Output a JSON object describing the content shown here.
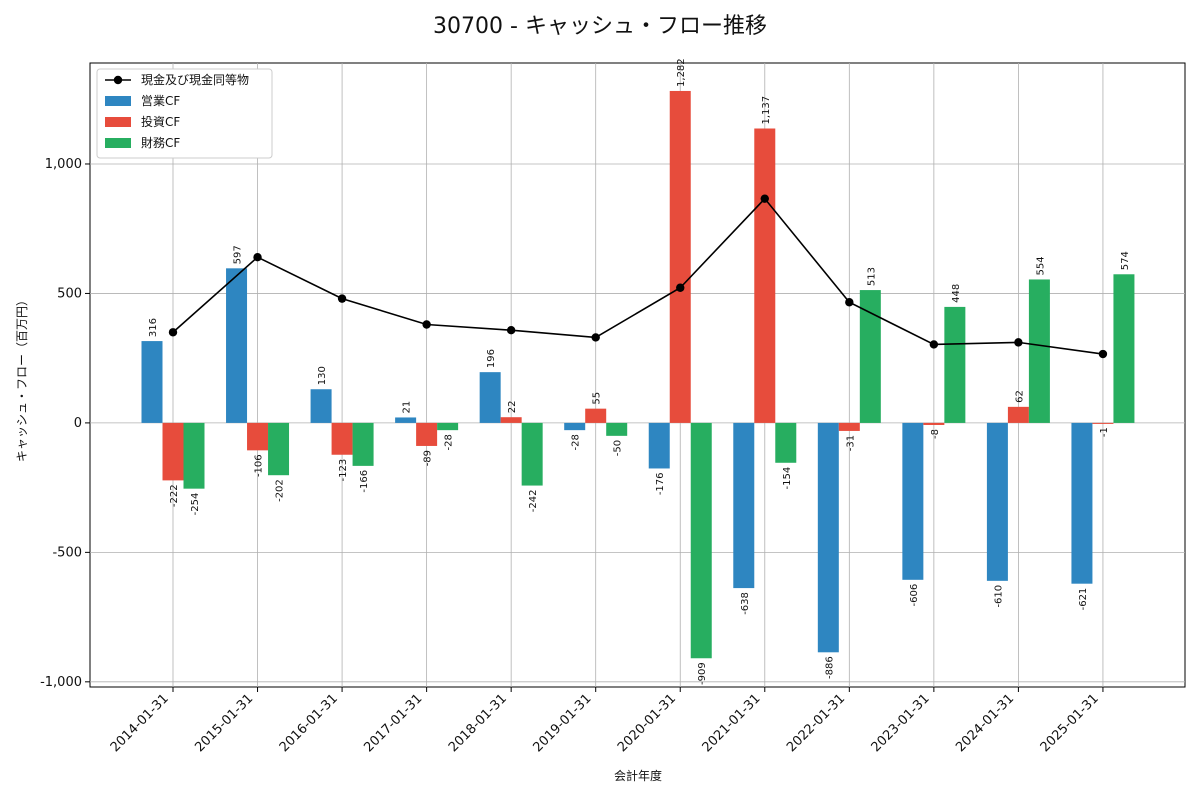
{
  "chart_data": {
    "type": "bar",
    "title": "30700 - キャッシュ・フロー推移",
    "xlabel": "会計年度",
    "ylabel": "キャッシュ・フロー（百万円）",
    "categories": [
      "2014-01-31",
      "2015-01-31",
      "2016-01-31",
      "2017-01-31",
      "2018-01-31",
      "2019-01-31",
      "2020-01-31",
      "2021-01-31",
      "2022-01-31",
      "2023-01-31",
      "2024-01-31",
      "2025-01-31"
    ],
    "ylim": [
      -1020,
      1390
    ],
    "yticks": [
      -1000,
      -500,
      0,
      500,
      1000
    ],
    "ytick_labels": [
      "-1,000",
      "-500",
      "0",
      "500",
      "1,000"
    ],
    "grid": true,
    "legend_position": "top-left",
    "series": [
      {
        "name": "営業CF",
        "type": "bar",
        "color": "#2e86c1",
        "values": [
          316,
          597,
          130,
          21,
          196,
          -28,
          -176,
          -638,
          -886,
          -606,
          -610,
          -621
        ],
        "labels": [
          "316",
          "597",
          "130",
          "21",
          "196",
          "-28",
          "-176",
          "-638",
          "-886",
          "-606",
          "-610",
          "-621"
        ]
      },
      {
        "name": "投資CF",
        "type": "bar",
        "color": "#e74c3c",
        "values": [
          -222,
          -106,
          -123,
          -89,
          22,
          55,
          1282,
          1137,
          -31,
          -8,
          62,
          -1
        ],
        "labels": [
          "-222",
          "-106",
          "-123",
          "-89",
          "22",
          "55",
          "1,282",
          "1,137",
          "-31",
          "-8",
          "62",
          "-1"
        ]
      },
      {
        "name": "財務CF",
        "type": "bar",
        "color": "#27ae60",
        "values": [
          -254,
          -202,
          -166,
          -28,
          -242,
          -50,
          -909,
          -154,
          513,
          448,
          554,
          574
        ],
        "labels": [
          "-254",
          "-202",
          "-166",
          "-28",
          "-242",
          "-50",
          "-909",
          "-154",
          "513",
          "448",
          "554",
          "574"
        ]
      },
      {
        "name": "現金及び現金同等物",
        "type": "line",
        "color": "#000000",
        "values": [
          350,
          640,
          480,
          380,
          358,
          330,
          522,
          866,
          466,
          303,
          311,
          266
        ]
      }
    ]
  }
}
